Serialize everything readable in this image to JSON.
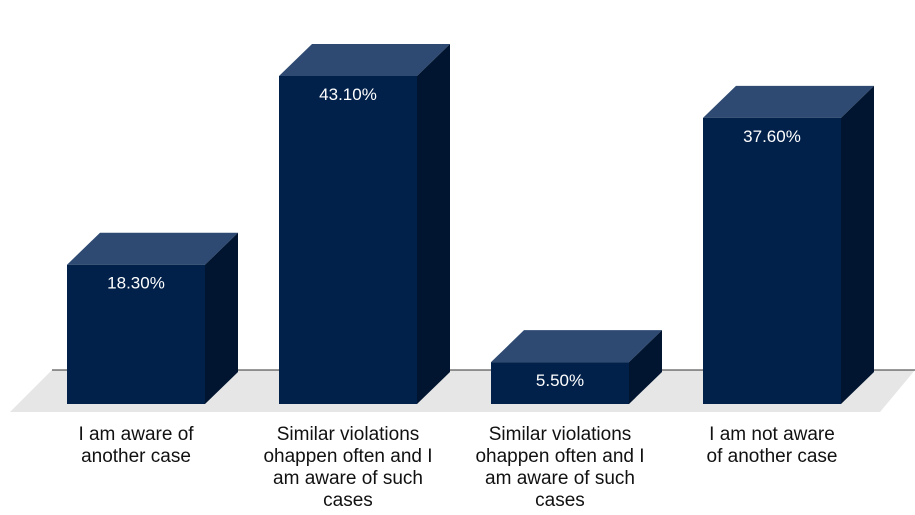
{
  "chart_data": {
    "type": "bar",
    "style": "3d-column",
    "categories": [
      "I am aware of\nanother case",
      "Similar violations\nohappen often and I\nam aware of such\ncases",
      "Similar violations\nohappen often and I\nam aware of such\ncases",
      "I am not aware\nof another case"
    ],
    "values": [
      18.3,
      43.1,
      5.5,
      37.6
    ],
    "data_labels": [
      "18.30%",
      "43.10%",
      "5.50%",
      "37.60%"
    ],
    "ylim": [
      0,
      45
    ],
    "unit": "%",
    "grid": false,
    "legend": "none",
    "colors": {
      "bar_front": "#02214a",
      "bar_top": "#2e4a72",
      "bar_side": "#011530",
      "floor": "#e6e6e6",
      "baseline": "#333333",
      "data_label": "#ffffff",
      "category_label": "#111111"
    }
  }
}
